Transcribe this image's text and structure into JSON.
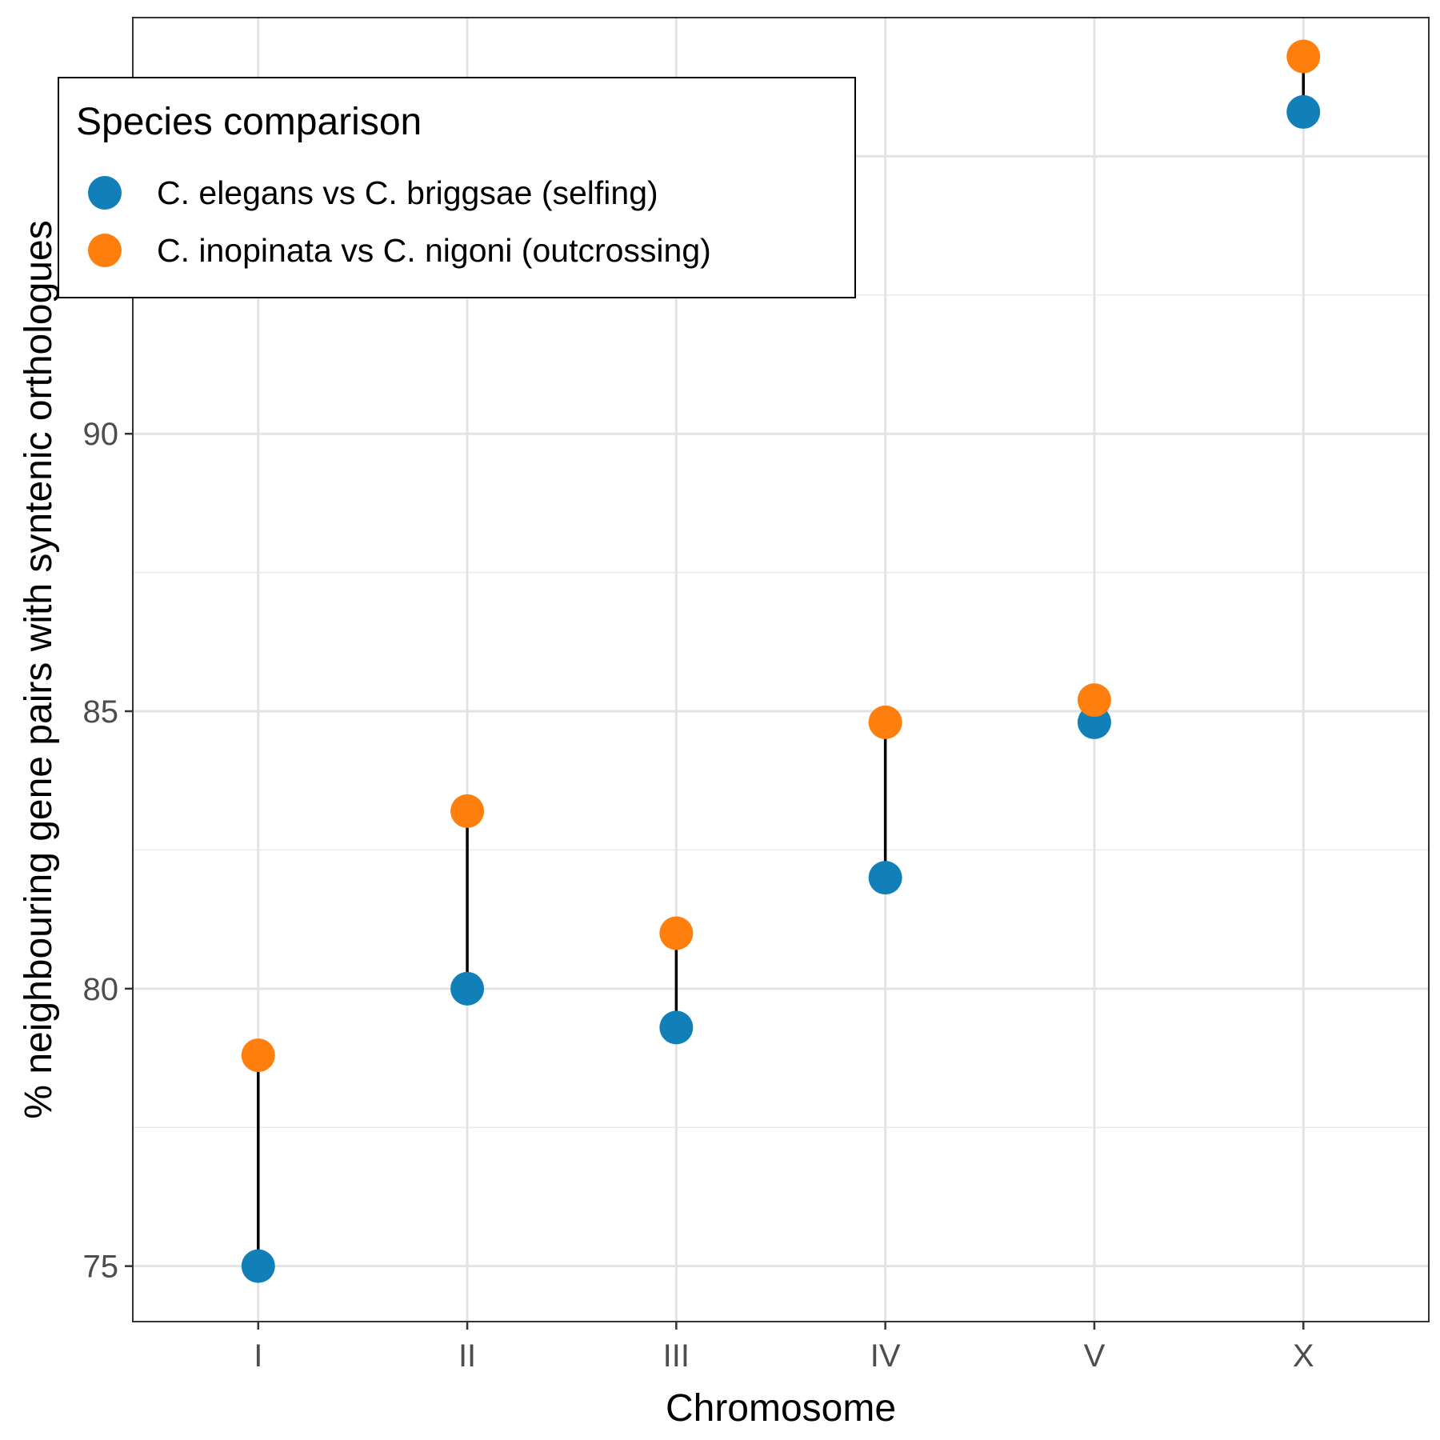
{
  "chart_data": {
    "type": "scatter",
    "title": "",
    "xlabel": "Chromosome",
    "ylabel": "% neighbouring gene pairs with syntenic orthologues",
    "categories": [
      "I",
      "II",
      "III",
      "IV",
      "V",
      "X"
    ],
    "ylim": [
      74.0,
      97.5
    ],
    "yticks": [
      75,
      80,
      85,
      90
    ],
    "grid": true,
    "legend": {
      "title": "Species comparison",
      "placement": "top-left"
    },
    "series": [
      {
        "name": "C. elegans vs C. briggsae (selfing)",
        "color": "#1180b9",
        "values": [
          75.0,
          80.0,
          79.3,
          82.0,
          84.8,
          95.8
        ]
      },
      {
        "name": "C. inopinata vs C. nigoni (outcrossing)",
        "color": "#ff7f0e",
        "values": [
          78.8,
          83.2,
          81.0,
          84.8,
          85.2,
          96.8
        ]
      }
    ],
    "connector_color": "#000000"
  }
}
